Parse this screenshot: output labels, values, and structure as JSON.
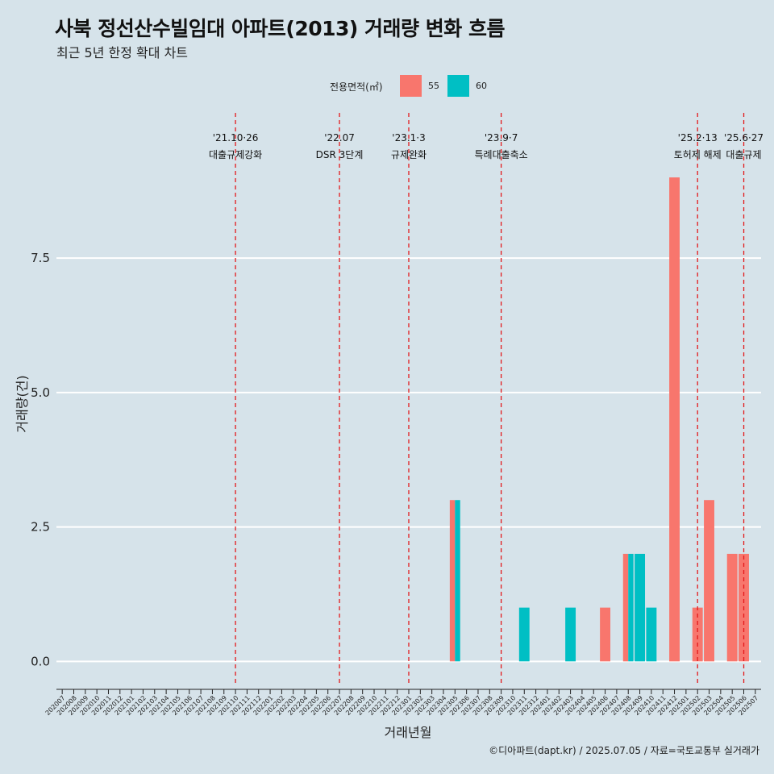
{
  "title": "사북 정선산수빌임대 아파트(2013) 거래량 변화 흐름",
  "subtitle": "최근 5년 한정 확대 차트",
  "caption": "©디아파트(dapt.kr) / 2025.07.05 / 자료=국토교통부 실거래가",
  "legend": {
    "title": "전용면적(㎡)",
    "items": [
      {
        "label": "55",
        "color": "#f8766d"
      },
      {
        "label": "60",
        "color": "#00bfc4"
      }
    ]
  },
  "chart_data": {
    "type": "bar",
    "xlabel": "거래년월",
    "ylabel": "거래량(건)",
    "ylim": [
      -0.4,
      10.2
    ],
    "yticks": [
      0.0,
      2.5,
      5.0,
      7.5
    ],
    "ytick_labels": [
      "0.0",
      "2.5",
      "5.0",
      "7.5"
    ],
    "categories": [
      "202007",
      "202008",
      "202009",
      "202010",
      "202011",
      "202012",
      "202101",
      "202102",
      "202103",
      "202104",
      "202105",
      "202106",
      "202107",
      "202108",
      "202109",
      "202110",
      "202111",
      "202112",
      "202201",
      "202202",
      "202203",
      "202204",
      "202205",
      "202206",
      "202207",
      "202208",
      "202209",
      "202210",
      "202211",
      "202212",
      "202301",
      "202302",
      "202303",
      "202304",
      "202305",
      "202306",
      "202307",
      "202308",
      "202309",
      "202310",
      "202311",
      "202312",
      "202401",
      "202402",
      "202403",
      "202404",
      "202405",
      "202406",
      "202407",
      "202408",
      "202409",
      "202410",
      "202411",
      "202412",
      "202501",
      "202502",
      "202503",
      "202504",
      "202505",
      "202506",
      "202507"
    ],
    "series": [
      {
        "name": "55",
        "color": "#f8766d",
        "points": [
          {
            "x": "202305",
            "y": 3
          },
          {
            "x": "202406",
            "y": 1
          },
          {
            "x": "202408",
            "y": 2
          },
          {
            "x": "202412",
            "y": 9
          },
          {
            "x": "202502",
            "y": 1
          },
          {
            "x": "202503",
            "y": 3
          },
          {
            "x": "202505",
            "y": 2
          },
          {
            "x": "202506",
            "y": 2
          }
        ]
      },
      {
        "name": "60",
        "color": "#00bfc4",
        "points": [
          {
            "x": "202305",
            "y": 3
          },
          {
            "x": "202311",
            "y": 1
          },
          {
            "x": "202403",
            "y": 1
          },
          {
            "x": "202408",
            "y": 2
          },
          {
            "x": "202409",
            "y": 2
          },
          {
            "x": "202410",
            "y": 1
          }
        ]
      }
    ],
    "events": [
      {
        "x": "202110",
        "date": "'21.10·26",
        "label": "대출규제강화"
      },
      {
        "x": "202207",
        "date": "'22.07",
        "label": "DSR 3단계"
      },
      {
        "x": "202301",
        "date": "'23.1·3",
        "label": "규제완화"
      },
      {
        "x": "202309",
        "date": "'23.9·7",
        "label": "특례대출축소"
      },
      {
        "x": "202502",
        "date": "'25.2·13",
        "label": "토허제 해제"
      },
      {
        "x": "202506",
        "date": "'25.6·27",
        "label": "대출규제"
      }
    ],
    "event_line_color": "#e31a1c",
    "grid": true,
    "legend_position": "top"
  }
}
